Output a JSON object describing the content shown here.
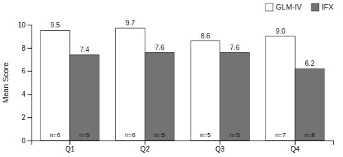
{
  "chart_data": {
    "type": "bar",
    "categories": [
      "Q1",
      "Q2",
      "Q3",
      "Q4"
    ],
    "series": [
      {
        "name": "GLM-IV",
        "color": "#ffffff",
        "values": [
          9.5,
          9.7,
          8.6,
          9.0
        ],
        "value_labels": [
          "9.5",
          "9.7",
          "8.6",
          "9.0"
        ],
        "n_labels": [
          "n=6",
          "n=6",
          "n=5",
          "n=7"
        ]
      },
      {
        "name": "IFX",
        "color": "#737373",
        "values": [
          7.4,
          7.6,
          7.6,
          6.2
        ],
        "value_labels": [
          "7.4",
          "7.6",
          "7.6",
          "6.2"
        ],
        "n_labels": [
          "n=5",
          "n=5",
          "n=5",
          "n=6"
        ]
      }
    ],
    "ylabel": "Mean Score",
    "ylim": [
      0,
      10
    ],
    "yticks": [
      0,
      2,
      4,
      6,
      8,
      10
    ],
    "grid": false,
    "legend": "upper right",
    "data_labels": true
  }
}
